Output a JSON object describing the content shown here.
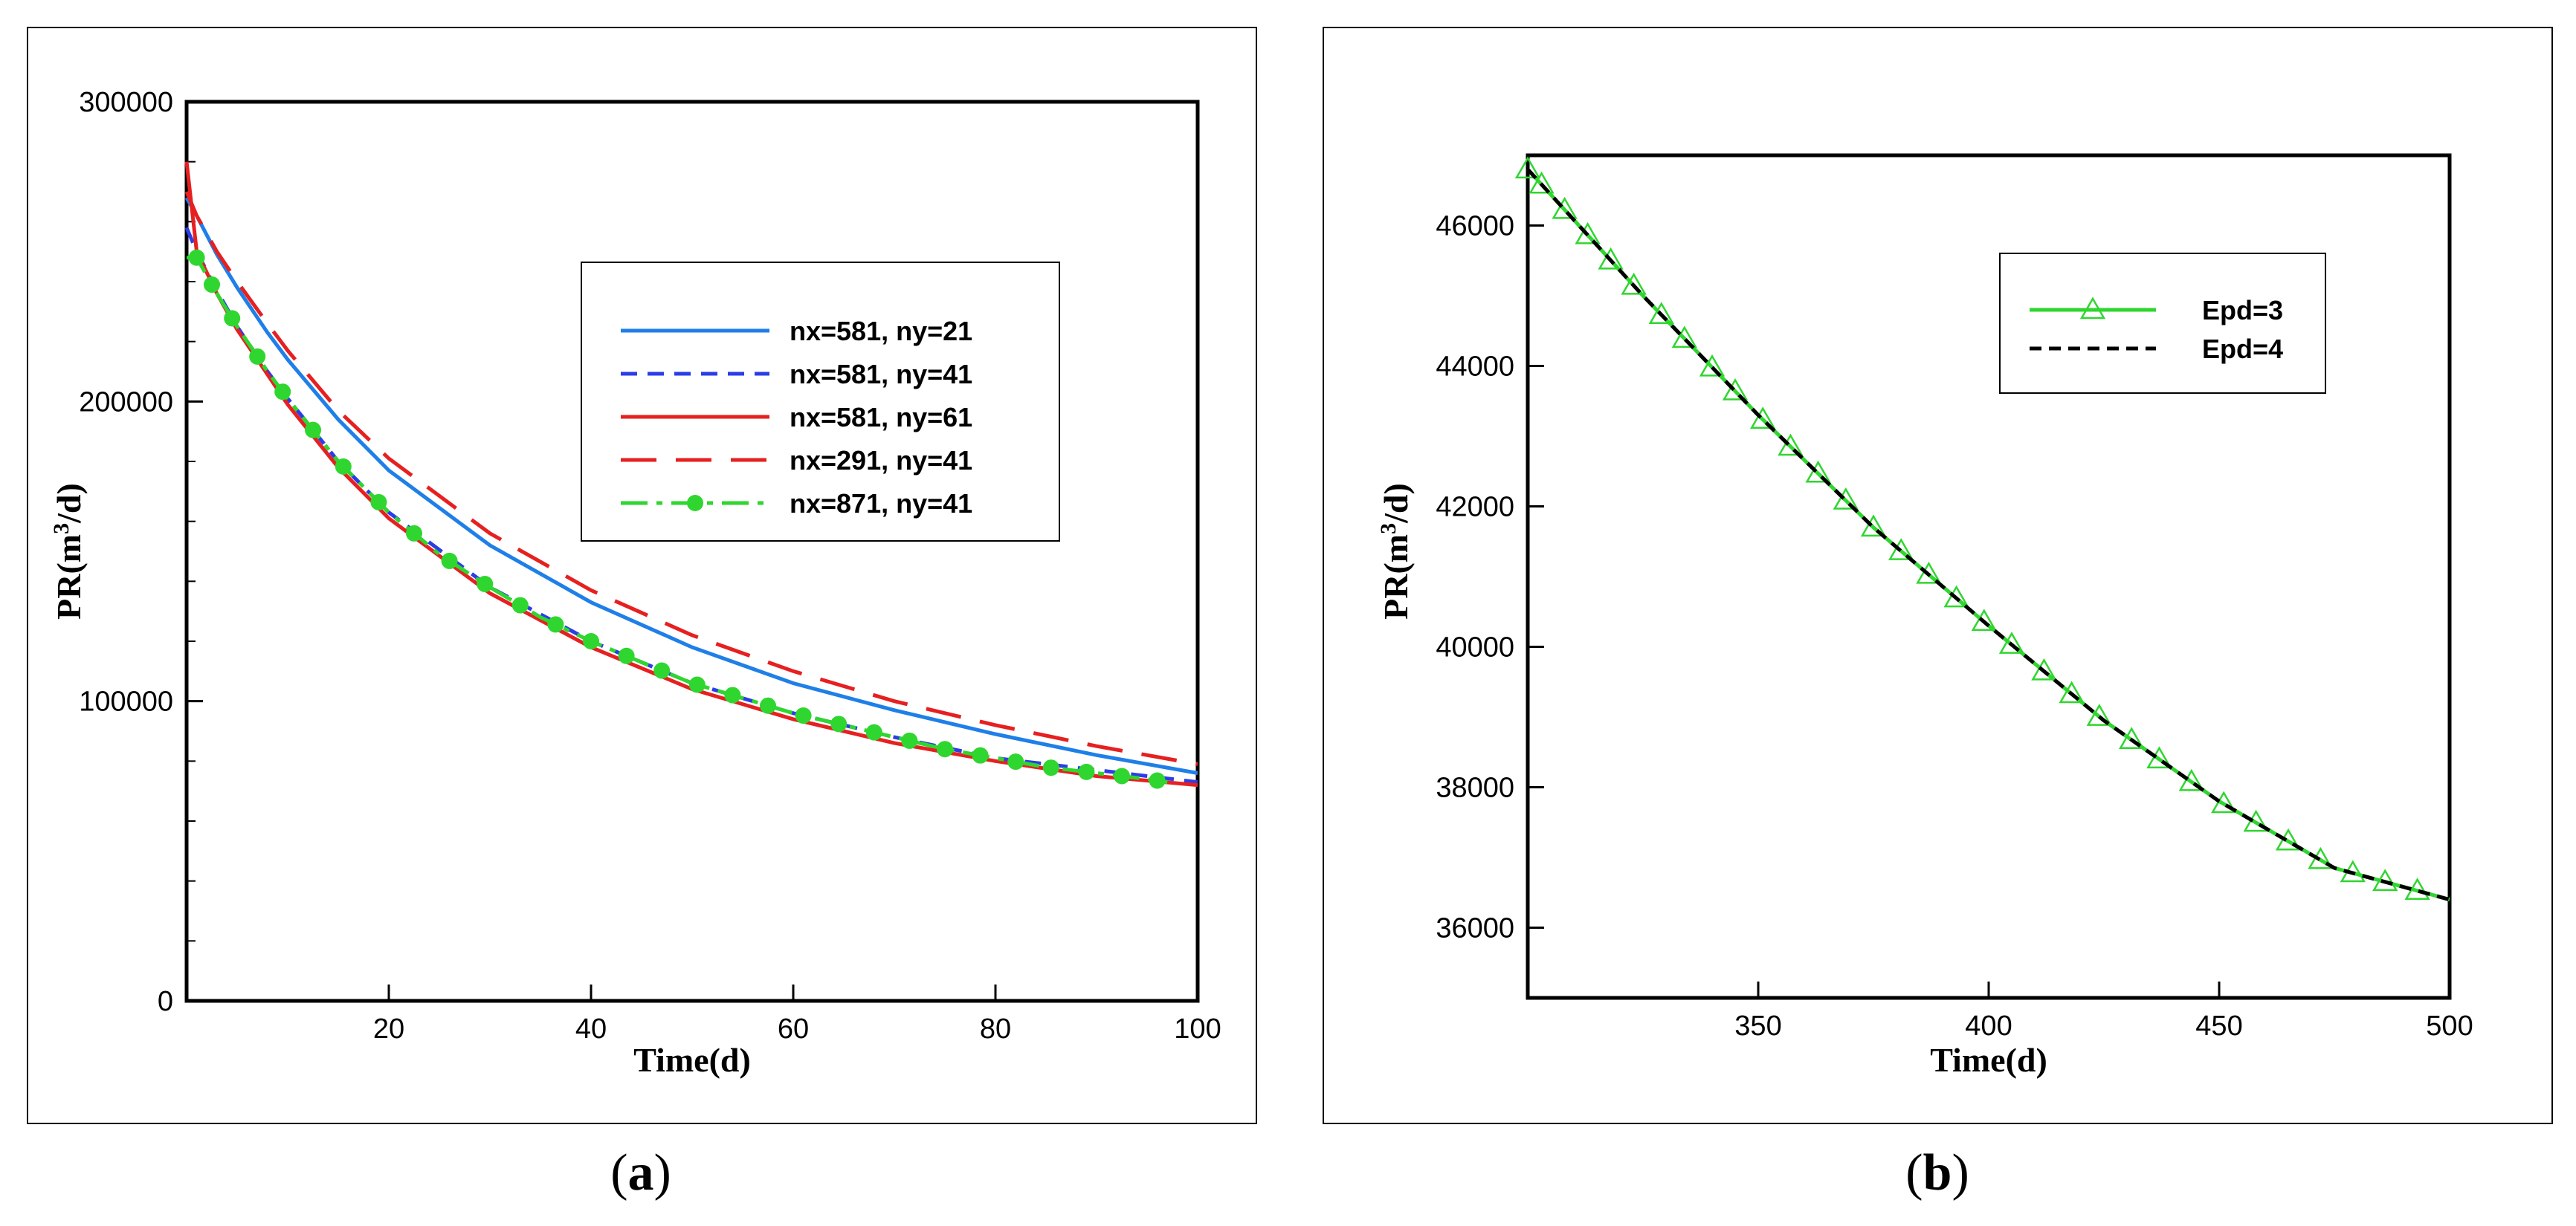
{
  "chart_data": [
    {
      "id": "a",
      "type": "line",
      "caption_letter": "a",
      "xlabel": "Time(d)",
      "ylabel_parts": [
        "PR(m",
        "3",
        "/d)"
      ],
      "xlim": [
        0,
        100
      ],
      "ylim": [
        0,
        300000
      ],
      "xticks": [
        20,
        40,
        60,
        80,
        100
      ],
      "yticks": [
        0,
        100000,
        200000,
        300000
      ],
      "yminor_step": 20000,
      "series": [
        {
          "name": "nx=581, ny=21",
          "color": "#1f7fe8",
          "dash": "",
          "marker": "none",
          "x": [
            0,
            1,
            3,
            5,
            8,
            10,
            15,
            20,
            30,
            40,
            50,
            60,
            70,
            80,
            90,
            100
          ],
          "y": [
            268000,
            262000,
            249000,
            238000,
            223000,
            214000,
            194000,
            177000,
            152000,
            133000,
            118000,
            106000,
            97000,
            89000,
            82000,
            76000
          ]
        },
        {
          "name": "nx=581, ny=41",
          "color": "#2a3ee6",
          "dash": "22,14",
          "marker": "none",
          "x": [
            0,
            1,
            3,
            5,
            8,
            10,
            15,
            20,
            30,
            40,
            50,
            60,
            70,
            80,
            90,
            100
          ],
          "y": [
            258000,
            250000,
            237000,
            225000,
            210000,
            201000,
            180000,
            163000,
            138000,
            120000,
            106000,
            96000,
            88000,
            81000,
            77000,
            73000
          ]
        },
        {
          "name": "nx=581, ny=61",
          "color": "#e62020",
          "dash": "",
          "marker": "none",
          "x": [
            0,
            1,
            3,
            5,
            8,
            10,
            15,
            20,
            30,
            40,
            50,
            60,
            70,
            80,
            90,
            100
          ],
          "y": [
            280000,
            250000,
            236000,
            224000,
            209000,
            199000,
            178000,
            161000,
            136000,
            118000,
            104000,
            94000,
            86000,
            80000,
            75000,
            72000
          ]
        },
        {
          "name": "nx=291, ny=41",
          "color": "#e62020",
          "dash": "48,26",
          "marker": "none",
          "x": [
            0,
            1,
            3,
            5,
            8,
            10,
            15,
            20,
            30,
            40,
            50,
            60,
            70,
            80,
            90,
            100
          ],
          "y": [
            270000,
            262000,
            250000,
            240000,
            226000,
            217000,
            197000,
            181000,
            156000,
            137000,
            122000,
            110000,
            100000,
            92000,
            85000,
            79000
          ]
        },
        {
          "name": "nx=871, ny=41",
          "color": "#2fd62f",
          "dash": "36,12,8,12",
          "marker": "circle",
          "x": [
            0,
            1,
            3,
            5,
            8,
            10,
            15,
            20,
            25,
            30,
            35,
            40,
            45,
            50,
            55,
            60,
            65,
            70,
            75,
            80,
            85,
            90,
            95,
            97
          ],
          "y": [
            248000,
            248000,
            236000,
            225000,
            210000,
            201000,
            180000,
            163000,
            149000,
            138000,
            128000,
            120000,
            113000,
            106000,
            101000,
            96000,
            92000,
            88000,
            84000,
            81000,
            78000,
            76000,
            74000,
            73000
          ],
          "marker_x": [
            1,
            2.5,
            4.5,
            7,
            9.5,
            12.5,
            15.5,
            19,
            22.5,
            26,
            29.5,
            33,
            36.5,
            40,
            43.5,
            47,
            50.5,
            54,
            57.5,
            61,
            64.5,
            68,
            71.5,
            75,
            78.5,
            82,
            85.5,
            89,
            92.5,
            96
          ]
        }
      ],
      "legend": {
        "position": "upper-right"
      }
    },
    {
      "id": "b",
      "type": "line",
      "caption_letter": "b",
      "xlabel": "Time(d)",
      "ylabel_parts": [
        "PR(m",
        "3",
        "/d)"
      ],
      "xlim": [
        300,
        500
      ],
      "ylim": [
        35000,
        47000
      ],
      "xticks": [
        350,
        400,
        450,
        500
      ],
      "yticks": [
        36000,
        38000,
        40000,
        42000,
        44000,
        46000
      ],
      "series": [
        {
          "name": "Epd=3",
          "color": "#2fd62f",
          "dash": "",
          "marker": "triangle",
          "x": [
            300,
            325,
            350,
            375,
            400,
            425,
            450,
            475,
            500
          ],
          "y": [
            46800,
            45000,
            43300,
            41700,
            40300,
            38950,
            37800,
            36850,
            36400
          ],
          "marker_x": [
            300,
            303,
            308,
            313,
            318,
            323,
            329,
            334,
            340,
            345,
            351,
            357,
            363,
            369,
            375,
            381,
            387,
            393,
            399,
            405,
            412,
            418,
            424,
            431,
            437,
            444,
            451,
            458,
            465,
            472,
            479,
            486,
            493
          ]
        },
        {
          "name": "Epd=4",
          "color": "#000000",
          "dash": "16,10",
          "marker": "none",
          "x": [
            300,
            325,
            350,
            375,
            400,
            425,
            450,
            475,
            500
          ],
          "y": [
            46800,
            45000,
            43300,
            41700,
            40300,
            38950,
            37800,
            36850,
            36400
          ]
        }
      ],
      "legend": {
        "position": "upper-right"
      }
    }
  ]
}
